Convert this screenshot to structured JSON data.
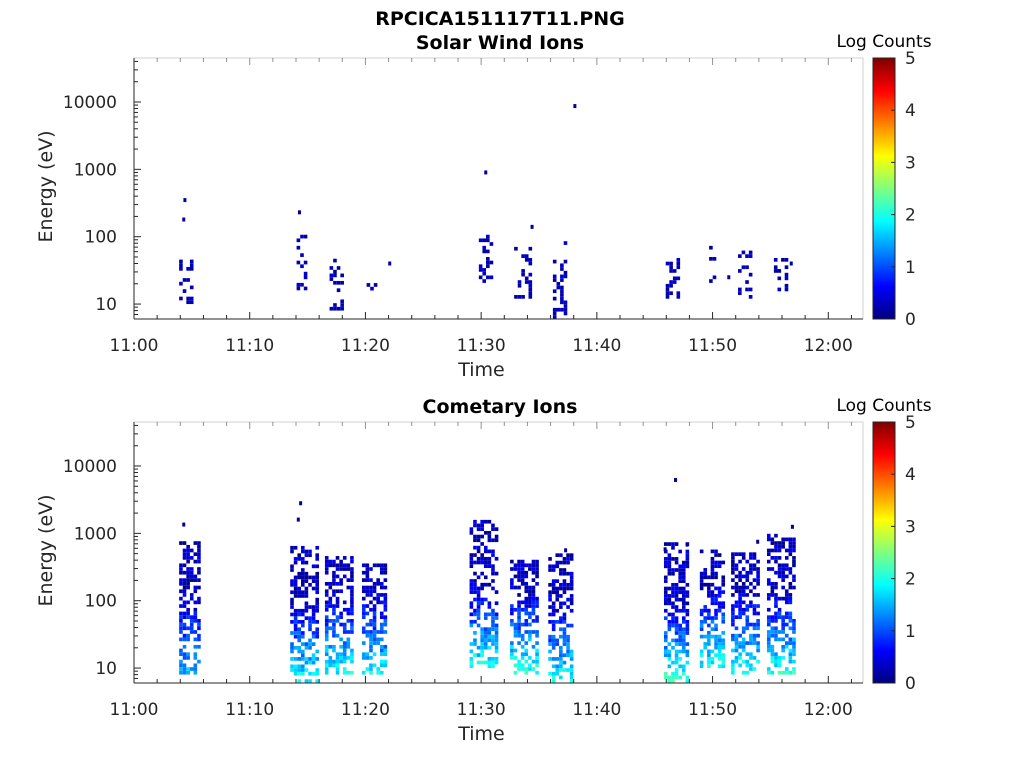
{
  "figure_title": "RPCICA151117T11.PNG",
  "colors": {
    "axis": "#262626",
    "colormap": [
      "#00007f",
      "#0000ff",
      "#007fff",
      "#00ffff",
      "#7fff7f",
      "#ffff00",
      "#ff7f00",
      "#ff0000",
      "#7f0000"
    ]
  },
  "chart_data": [
    {
      "type": "heatmap",
      "title": "Solar Wind Ions",
      "xlabel": "Time",
      "ylabel": "Energy (eV)",
      "x_ticks": [
        "11:00",
        "11:10",
        "11:20",
        "11:30",
        "11:40",
        "11:50",
        "12:00"
      ],
      "y_ticks": [
        "10",
        "100",
        "1000",
        "10000"
      ],
      "y_scale": "log",
      "ylim": [
        6,
        45000
      ],
      "x_range_minutes": [
        0,
        63
      ],
      "colorbar": {
        "label": "Log Counts",
        "range": [
          0,
          5
        ],
        "ticks": [
          "0",
          "1",
          "2",
          "3",
          "4",
          "5"
        ],
        "placement": "right"
      },
      "grid": false,
      "clusters": [
        {
          "t": 4.5,
          "e_min": 10,
          "e_max": 45,
          "level": 0.3,
          "width_min": 1.2
        },
        {
          "t": 14.5,
          "e_min": 16,
          "e_max": 95,
          "level": 0.3,
          "width_min": 0.9
        },
        {
          "t": 17.5,
          "e_min": 8,
          "e_max": 45,
          "level": 0.2,
          "width_min": 1.2
        },
        {
          "t": 20.5,
          "e_min": 14,
          "e_max": 22,
          "level": 0.2,
          "width_min": 0.8
        },
        {
          "t": 30.3,
          "e_min": 16,
          "e_max": 100,
          "level": 0.3,
          "width_min": 1.0
        },
        {
          "t": 33.5,
          "e_min": 12,
          "e_max": 65,
          "level": 0.3,
          "width_min": 1.3
        },
        {
          "t": 36.7,
          "e_min": 6,
          "e_max": 85,
          "level": 0.3,
          "width_min": 1.0
        },
        {
          "t": 46.5,
          "e_min": 12,
          "e_max": 45,
          "level": 0.3,
          "width_min": 1.1
        },
        {
          "t": 50.0,
          "e_min": 16,
          "e_max": 80,
          "level": 0.2,
          "width_min": 0.6
        },
        {
          "t": 52.8,
          "e_min": 12,
          "e_max": 60,
          "level": 0.3,
          "width_min": 1.2
        },
        {
          "t": 55.8,
          "e_min": 12,
          "e_max": 45,
          "level": 0.3,
          "width_min": 1.0
        }
      ],
      "isolated_points": [
        {
          "t": 4.4,
          "e": 350
        },
        {
          "t": 4.3,
          "e": 180
        },
        {
          "t": 14.3,
          "e": 230
        },
        {
          "t": 30.4,
          "e": 900
        },
        {
          "t": 34.4,
          "e": 140
        },
        {
          "t": 38.1,
          "e": 8700
        },
        {
          "t": 51.4,
          "e": 25
        },
        {
          "t": 56.8,
          "e": 40
        },
        {
          "t": 22.1,
          "e": 40
        }
      ]
    },
    {
      "type": "heatmap",
      "title": "Cometary Ions",
      "xlabel": "Time",
      "ylabel": "Energy (eV)",
      "x_ticks": [
        "11:00",
        "11:10",
        "11:20",
        "11:30",
        "11:40",
        "11:50",
        "12:00"
      ],
      "y_ticks": [
        "10",
        "100",
        "1000",
        "10000"
      ],
      "y_scale": "log",
      "ylim": [
        6,
        45000
      ],
      "x_range_minutes": [
        0,
        63
      ],
      "colorbar": {
        "label": "Log Counts",
        "range": [
          0,
          5
        ],
        "ticks": [
          "0",
          "1",
          "2",
          "3",
          "4",
          "5"
        ],
        "placement": "right"
      },
      "grid": false,
      "clusters": [
        {
          "t": 4.8,
          "e_min": 8,
          "e_max": 700,
          "level": 1.2,
          "width_min": 1.8
        },
        {
          "t": 14.6,
          "e_min": 6,
          "e_max": 600,
          "level": 1.6,
          "width_min": 2.2
        },
        {
          "t": 17.6,
          "e_min": 8,
          "e_max": 450,
          "level": 1.6,
          "width_min": 2.2
        },
        {
          "t": 20.7,
          "e_min": 8,
          "e_max": 350,
          "level": 1.5,
          "width_min": 2.0
        },
        {
          "t": 30.2,
          "e_min": 10,
          "e_max": 1400,
          "level": 1.6,
          "width_min": 2.4
        },
        {
          "t": 33.6,
          "e_min": 8,
          "e_max": 400,
          "level": 1.8,
          "width_min": 2.2
        },
        {
          "t": 36.8,
          "e_min": 6,
          "e_max": 450,
          "level": 1.6,
          "width_min": 2.0
        },
        {
          "t": 46.8,
          "e_min": 6,
          "e_max": 700,
          "level": 1.8,
          "width_min": 2.0
        },
        {
          "t": 49.9,
          "e_min": 10,
          "e_max": 550,
          "level": 1.6,
          "width_min": 2.0
        },
        {
          "t": 52.7,
          "e_min": 8,
          "e_max": 500,
          "level": 1.7,
          "width_min": 2.2
        },
        {
          "t": 55.8,
          "e_min": 8,
          "e_max": 900,
          "level": 1.7,
          "width_min": 2.2
        }
      ],
      "isolated_points": [
        {
          "t": 4.3,
          "e": 1350
        },
        {
          "t": 14.4,
          "e": 2800
        },
        {
          "t": 14.2,
          "e": 1600
        },
        {
          "t": 46.8,
          "e": 6200
        },
        {
          "t": 45.9,
          "e": 580
        },
        {
          "t": 53.9,
          "e": 750
        },
        {
          "t": 56.9,
          "e": 1250
        },
        {
          "t": 37.3,
          "e": 560
        },
        {
          "t": 47.8,
          "e": 680
        }
      ]
    }
  ]
}
